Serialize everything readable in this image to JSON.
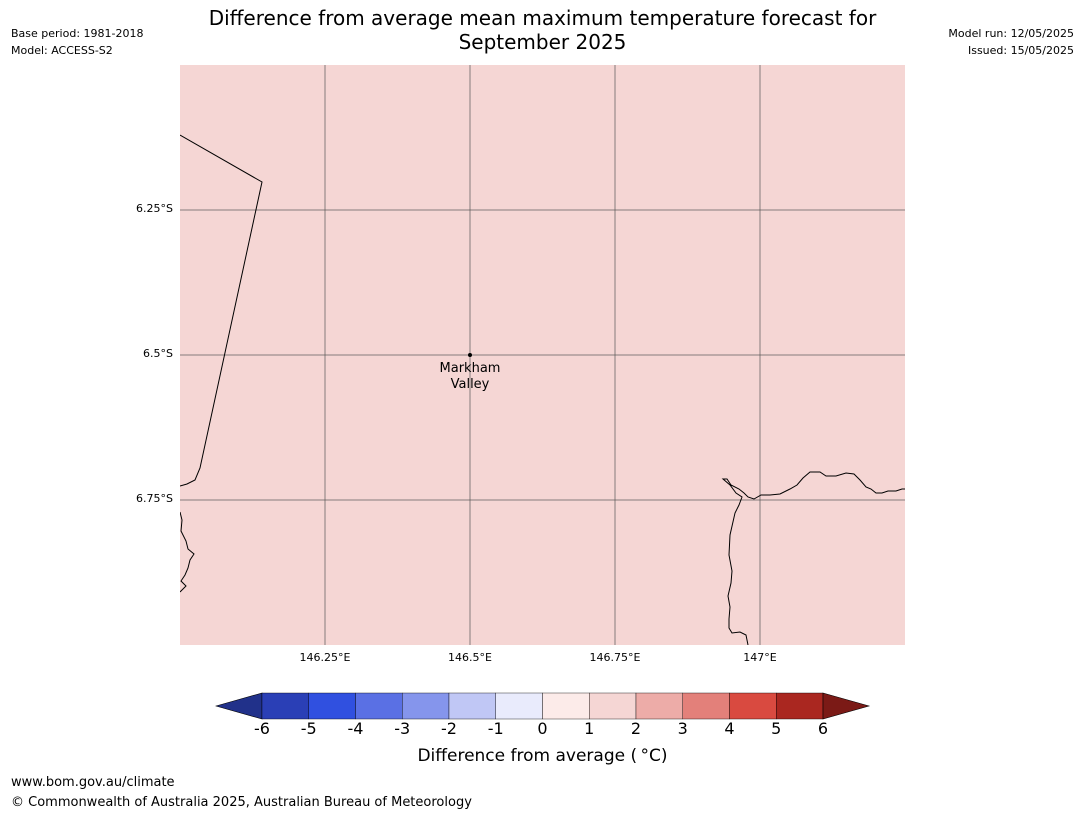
{
  "header": {
    "base_period": "Base period: 1981-2018",
    "model": "Model: ACCESS-S2",
    "title_line1": "Difference from average mean maximum temperature forecast for",
    "title_line2": "September 2025",
    "model_run": "Model run: 12/05/2025",
    "issued": "Issued: 15/05/2025"
  },
  "map": {
    "fill_color": "#f5d6d4",
    "location_label_line1": "Markham",
    "location_label_line2": "Valley",
    "lat_labels": [
      "6.25°S",
      "6.5°S",
      "6.75°S"
    ],
    "lon_labels": [
      "146.25°E",
      "146.5°E",
      "146.75°E",
      "147°E"
    ]
  },
  "colorbar": {
    "ticks": [
      "-6",
      "-5",
      "-4",
      "-3",
      "-2",
      "-1",
      "0",
      "1",
      "2",
      "3",
      "4",
      "5",
      "6"
    ],
    "colors": [
      "#21318a",
      "#2a3fb6",
      "#3050e0",
      "#5a70e4",
      "#8595ec",
      "#c0c7f5",
      "#e9ebfc",
      "#fcebe9",
      "#f5d6d4",
      "#edaca8",
      "#e3807a",
      "#d94a40",
      "#aa2720",
      "#7b1a16"
    ],
    "label": "Difference from average ( °C)"
  },
  "footer": {
    "url": "www.bom.gov.au/climate",
    "copyright": "© Commonwealth of Australia 2025, Australian Bureau of Meteorology"
  }
}
